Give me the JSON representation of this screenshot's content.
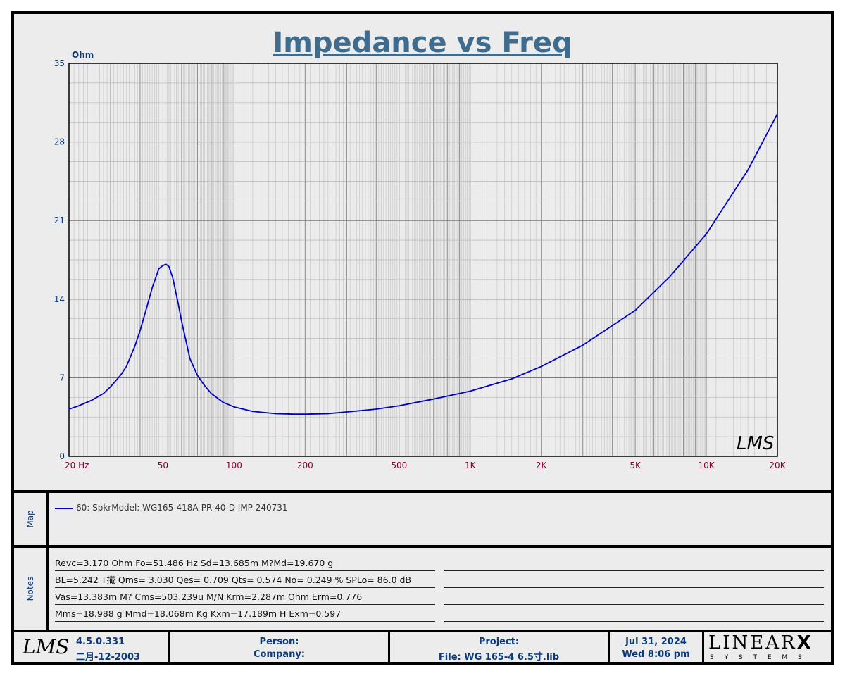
{
  "chart_data": {
    "type": "line",
    "title": "Impedance vs Freq",
    "ylabel": "Ohm",
    "xlabel": "",
    "x_scale": "log",
    "xlim": [
      20,
      20000
    ],
    "ylim": [
      0,
      35
    ],
    "y_ticks": [
      0,
      7,
      14,
      21,
      28,
      35
    ],
    "x_tick_labels": [
      {
        "v": 20,
        "t": "20  Hz"
      },
      {
        "v": 50,
        "t": "50"
      },
      {
        "v": 100,
        "t": "100"
      },
      {
        "v": 200,
        "t": "200"
      },
      {
        "v": 500,
        "t": "500"
      },
      {
        "v": 1000,
        "t": "1K"
      },
      {
        "v": 2000,
        "t": "2K"
      },
      {
        "v": 5000,
        "t": "5K"
      },
      {
        "v": 10000,
        "t": "10K"
      },
      {
        "v": 20000,
        "t": "20K"
      }
    ],
    "grid": true,
    "watermark": "LMS",
    "series": [
      {
        "name": "60: SpkrModel: WG165-418A-PR-40-D IMP 240731",
        "color": "#0000cc",
        "x": [
          20,
          22,
          25,
          28,
          30,
          33,
          35,
          38,
          40,
          43,
          45,
          48,
          50,
          51.5,
          53,
          55,
          58,
          60,
          63,
          65,
          70,
          75,
          80,
          90,
          100,
          120,
          150,
          180,
          200,
          250,
          300,
          400,
          500,
          700,
          1000,
          1500,
          2000,
          3000,
          5000,
          7000,
          10000,
          15000,
          20000
        ],
        "y": [
          4.2,
          4.5,
          5.0,
          5.6,
          6.2,
          7.2,
          8.0,
          9.8,
          11.2,
          13.5,
          15.0,
          16.7,
          17.0,
          17.1,
          16.9,
          15.9,
          13.6,
          12.0,
          10.0,
          8.7,
          7.2,
          6.3,
          5.6,
          4.8,
          4.4,
          4.0,
          3.8,
          3.75,
          3.75,
          3.8,
          3.95,
          4.2,
          4.5,
          5.1,
          5.8,
          6.9,
          8.0,
          9.9,
          13.0,
          16.0,
          19.8,
          25.5,
          30.5
        ]
      }
    ]
  },
  "map": {
    "label": "Map",
    "entry": "60: SpkrModel: WG165-418A-PR-40-D IMP 240731"
  },
  "notes": {
    "label": "Notes",
    "lines": [
      "Revc=3.170 Ohm  Fo=51.486 Hz  Sd=13.685m M?Md=19.670 g",
      "BL=5.242 T擮  Qms= 3.030  Qes= 0.709  Qts= 0.574  No= 0.249 %  SPLo= 86.0 dB",
      "Vas=13.383m M? Cms=503.239u M/N  Krm=2.287m Ohm  Erm=0.776",
      "Mms=18.988 g  Mmd=18.068m Kg  Kxm=17.189m H  Exm=0.597"
    ]
  },
  "footer": {
    "logo": "LMS",
    "version": "4.5.0.331",
    "version_date": "二月-12-2003",
    "person_label": "Person:",
    "company_label": "Company:",
    "project_label": "Project:",
    "file_label": "File: WG 165-4 6.5寸.lib",
    "date": "Jul 31, 2024",
    "time": "Wed  8:06 pm",
    "brand": "LINEAR",
    "brand_x": "X",
    "brand_sub": "S Y S T E M S"
  }
}
